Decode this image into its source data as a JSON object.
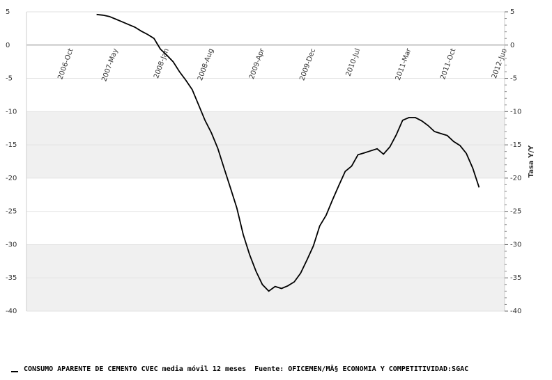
{
  "chart_data": {
    "type": "line",
    "x": [
      "2007-Feb",
      "2007-Mar",
      "2007-Apr",
      "2007-May",
      "2007-Jun",
      "2007-Jul",
      "2007-Aug",
      "2007-Sep",
      "2007-Oct",
      "2007-Nov",
      "2007-Dec",
      "2008-Jan",
      "2008-Feb",
      "2008-Mar",
      "2008-Apr",
      "2008-May",
      "2008-Jun",
      "2008-Jul",
      "2008-Aug",
      "2008-Sep",
      "2008-Oct",
      "2008-Nov",
      "2008-Dec",
      "2009-Jan",
      "2009-Feb",
      "2009-Mar",
      "2009-Apr",
      "2009-May",
      "2009-Jun",
      "2009-Jul",
      "2009-Aug",
      "2009-Sep",
      "2009-Oct",
      "2009-Nov",
      "2009-Dec",
      "2010-Jan",
      "2010-Feb",
      "2010-Mar",
      "2010-Apr",
      "2010-May",
      "2010-Jun",
      "2010-Jul",
      "2010-Aug",
      "2010-Sep",
      "2010-Oct",
      "2010-Nov",
      "2010-Dec",
      "2011-Jan",
      "2011-Feb",
      "2011-Mar",
      "2011-Apr",
      "2011-May",
      "2011-Jun",
      "2011-Jul",
      "2011-Aug",
      "2011-Sep",
      "2011-Oct",
      "2011-Nov",
      "2011-Dec",
      "2012-Jan",
      "2012-Feb"
    ],
    "series": [
      {
        "name": "CONSUMO APARENTE DE CEMENTO CVEC media móvil 12 meses",
        "color": "#000000",
        "values": [
          4.6,
          4.5,
          4.3,
          3.9,
          3.5,
          3.1,
          2.7,
          2.1,
          1.6,
          1.0,
          -0.6,
          -1.5,
          -2.5,
          -4.0,
          -5.3,
          -6.7,
          -9.0,
          -11.3,
          -13.2,
          -15.5,
          -18.5,
          -21.5,
          -24.5,
          -28.5,
          -31.5,
          -34.0,
          -36.0,
          -37.0,
          -36.3,
          -36.6,
          -36.2,
          -35.6,
          -34.3,
          -32.3,
          -30.2,
          -27.2,
          -25.6,
          -23.3,
          -21.1,
          -19.0,
          -18.2,
          -16.5,
          -16.2,
          -15.9,
          -15.6,
          -16.4,
          -15.3,
          -13.5,
          -11.3,
          -10.9,
          -10.9,
          -11.4,
          -12.1,
          -13.0,
          -13.3,
          -13.6,
          -14.5,
          -15.1,
          -16.3,
          -18.5,
          -21.4
        ]
      }
    ],
    "source": "Fuente: OFICEMEN/MÂ§ ECONOMIA Y COMPETITIVIDAD:SGAC",
    "xlim": [
      "2006-Mar",
      "2012-Jun"
    ],
    "xticks": [
      "2006-Oct",
      "2007-May",
      "2008-Jan",
      "2008-Aug",
      "2009-Apr",
      "2009-Dec",
      "2010-Jul",
      "2011-Mar",
      "2011-Oct",
      "2012-Jun"
    ],
    "ylim": [
      -40,
      5
    ],
    "yticks": [
      5,
      0,
      -5,
      -10,
      -15,
      -20,
      -25,
      -30,
      -35,
      -40
    ],
    "y2lim": [
      -40,
      5
    ],
    "y2ticks": [
      5,
      0,
      -5,
      -10,
      -15,
      -20,
      -25,
      -30,
      -35,
      -40
    ],
    "y2label": "Tasa Y/Y",
    "grid": true
  }
}
